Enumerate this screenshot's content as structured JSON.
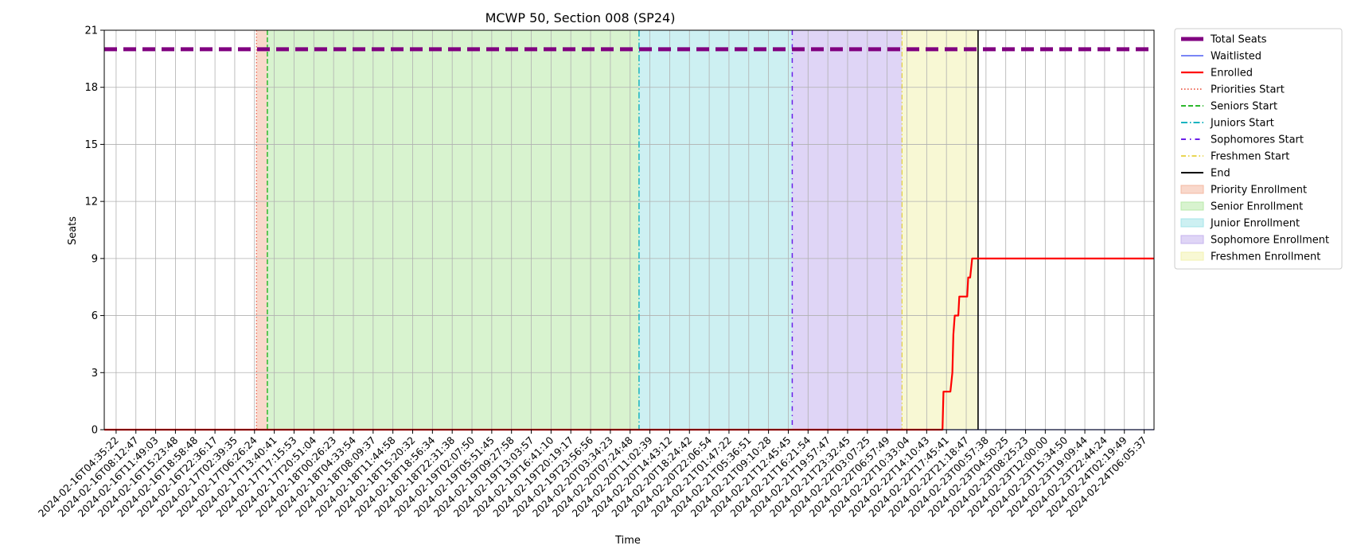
{
  "chart_data": {
    "type": "line",
    "title": "MCWP 50, Section 008 (SP24)",
    "xlabel": "Time",
    "ylabel": "Seats",
    "ylim": [
      0,
      21
    ],
    "yticks": [
      0,
      3,
      6,
      9,
      12,
      15,
      18,
      21
    ],
    "x_tick_labels": [
      "2024-02-16T04:35:22",
      "2024-02-16T08:12:47",
      "2024-02-16T11:49:03",
      "2024-02-16T15:23:48",
      "2024-02-16T18:58:48",
      "2024-02-16T22:36:17",
      "2024-02-17T02:39:35",
      "2024-02-17T06:26:24",
      "2024-02-17T13:40:41",
      "2024-02-17T17:15:53",
      "2024-02-17T20:51:04",
      "2024-02-18T00:26:23",
      "2024-02-18T04:33:54",
      "2024-02-18T08:09:37",
      "2024-02-18T11:44:58",
      "2024-02-18T15:20:32",
      "2024-02-18T18:56:34",
      "2024-02-18T22:31:38",
      "2024-02-19T02:07:50",
      "2024-02-19T05:51:45",
      "2024-02-19T09:27:58",
      "2024-02-19T13:03:57",
      "2024-02-19T16:41:10",
      "2024-02-19T20:19:17",
      "2024-02-19T23:56:56",
      "2024-02-20T03:34:23",
      "2024-02-20T07:24:48",
      "2024-02-20T11:02:39",
      "2024-02-20T14:43:12",
      "2024-02-20T18:24:42",
      "2024-02-20T22:06:54",
      "2024-02-21T01:47:22",
      "2024-02-21T05:36:51",
      "2024-02-21T09:10:28",
      "2024-02-21T12:45:45",
      "2024-02-21T16:21:54",
      "2024-02-21T19:57:47",
      "2024-02-21T23:32:45",
      "2024-02-22T03:07:25",
      "2024-02-22T06:57:49",
      "2024-02-22T10:33:04",
      "2024-02-22T14:10:43",
      "2024-02-22T17:45:41",
      "2024-02-22T21:18:47",
      "2024-02-23T00:57:38",
      "2024-02-23T04:50:25",
      "2024-02-23T08:25:23",
      "2024-02-23T12:00:00",
      "2024-02-23T15:34:50",
      "2024-02-23T19:09:44",
      "2024-02-23T22:44:24",
      "2024-02-24T02:19:49",
      "2024-02-24T06:05:37"
    ],
    "x_index_range": [
      -0.6,
      52.5
    ],
    "grid": true,
    "legend_position": "outside-right",
    "periods": [
      {
        "name": "Priority Enrollment",
        "start": 7.1,
        "end": 7.65,
        "color": "#f4b8a0"
      },
      {
        "name": "Senior Enrollment",
        "start": 7.65,
        "end": 26.45,
        "color": "#b8eaa8"
      },
      {
        "name": "Junior Enrollment",
        "start": 26.45,
        "end": 34.2,
        "color": "#a4e4e8"
      },
      {
        "name": "Sophomore Enrollment",
        "start": 34.2,
        "end": 39.75,
        "color": "#c5b2ee"
      },
      {
        "name": "Freshmen Enrollment",
        "start": 39.75,
        "end": 43.6,
        "color": "#f2f2b0"
      }
    ],
    "markers": [
      {
        "name": "Priorities Start",
        "x": 7.1,
        "color": "#e8402a",
        "dash": "1.5,2.5",
        "width": 1
      },
      {
        "name": "Seniors Start",
        "x": 7.65,
        "color": "#2db82d",
        "dash": "6,3",
        "width": 1.5
      },
      {
        "name": "Juniors Start",
        "x": 26.45,
        "color": "#1ab3c0",
        "dash": "8,3,1.5,3",
        "width": 1.5
      },
      {
        "name": "Sophomores Start",
        "x": 34.2,
        "color": "#6a1fe8",
        "dash": "6,5,1.5,5",
        "width": 1.5
      },
      {
        "name": "Freshmen Start",
        "x": 39.75,
        "color": "#e0c81c",
        "dash": "6,3,1.5,3",
        "width": 1
      },
      {
        "name": "End",
        "x": 43.6,
        "color": "#000000",
        "dash": "",
        "width": 1.6
      }
    ],
    "series": [
      {
        "name": "Total Seats",
        "color": "#800080",
        "style": "dashed-thick",
        "points": [
          [
            -0.6,
            20
          ],
          [
            52.5,
            20
          ]
        ]
      },
      {
        "name": "Waitlisted",
        "color": "#2a3cf0",
        "style": "solid-thin",
        "points": [
          [
            -0.6,
            0
          ],
          [
            52.5,
            0
          ]
        ]
      },
      {
        "name": "Enrolled",
        "color": "#ff0000",
        "style": "solid",
        "points": [
          [
            -0.6,
            0
          ],
          [
            41.8,
            0
          ],
          [
            41.85,
            2
          ],
          [
            42.2,
            2
          ],
          [
            42.3,
            3
          ],
          [
            42.35,
            5
          ],
          [
            42.42,
            6
          ],
          [
            42.6,
            6
          ],
          [
            42.65,
            7
          ],
          [
            43.05,
            7
          ],
          [
            43.1,
            8
          ],
          [
            43.2,
            8
          ],
          [
            43.3,
            9
          ],
          [
            52.5,
            9
          ]
        ]
      }
    ],
    "legend": [
      "Total Seats",
      "Waitlisted",
      "Enrolled",
      "Priorities Start",
      "Seniors Start",
      "Juniors Start",
      "Sophomores Start",
      "Freshmen Start",
      "End",
      "Priority Enrollment",
      "Senior Enrollment",
      "Junior Enrollment",
      "Sophomore Enrollment",
      "Freshmen Enrollment"
    ]
  }
}
